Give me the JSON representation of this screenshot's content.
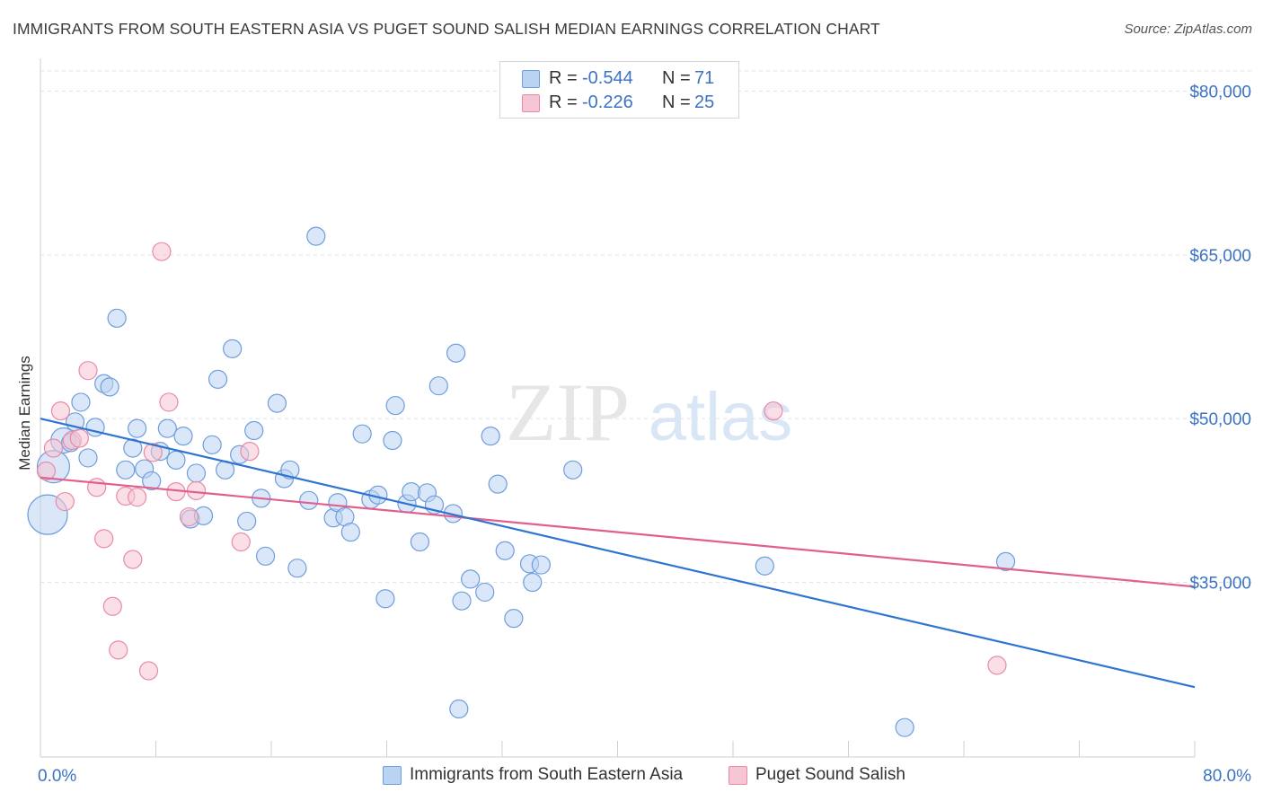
{
  "title": "IMMIGRANTS FROM SOUTH EASTERN ASIA VS PUGET SOUND SALISH MEDIAN EARNINGS CORRELATION CHART",
  "source": "Source: ZipAtlas.com",
  "watermark": {
    "zip": "ZIP",
    "atlas": "atlas"
  },
  "legend": {
    "rows": [
      {
        "r_label": "R =",
        "r_value": "-0.544",
        "n_label": "N =",
        "n_value": "71"
      },
      {
        "r_label": "R =",
        "r_value": "-0.226",
        "n_label": "N =",
        "n_value": "25"
      }
    ]
  },
  "colors": {
    "blue_fill": "#b9d3f3",
    "blue_stroke": "#6f9ddb",
    "blue_line": "#2f74d0",
    "pink_fill": "#f6c5d3",
    "pink_stroke": "#e88aa8",
    "pink_line": "#e0608d",
    "tick_label": "#3b73c4",
    "grid": "#dfe3ea"
  },
  "chart_data": {
    "type": "scatter",
    "title": "IMMIGRANTS FROM SOUTH EASTERN ASIA VS PUGET SOUND SALISH MEDIAN EARNINGS CORRELATION CHART",
    "xlabel": "",
    "ylabel": "Median Earnings",
    "xlim": [
      0,
      80
    ],
    "ylim": [
      19000,
      83000
    ],
    "x_tick_labels": [
      "0.0%",
      "80.0%"
    ],
    "y_ticks": [
      35000,
      50000,
      65000,
      80000
    ],
    "y_tick_labels": [
      "$35,000",
      "$50,000",
      "$65,000",
      "$80,000"
    ],
    "grid": true,
    "legend_position": "top-center",
    "series": [
      {
        "name": "Immigrants from South Eastern Asia",
        "color": "#6f9ddb",
        "trend": {
          "x": [
            0,
            80
          ],
          "y": [
            50000,
            25400
          ]
        },
        "points": [
          {
            "x": 0.5,
            "y": 41200,
            "s": 22
          },
          {
            "x": 0.9,
            "y": 45600,
            "s": 18
          },
          {
            "x": 1.6,
            "y": 48000,
            "s": 14
          },
          {
            "x": 2.1,
            "y": 47800,
            "s": 10
          },
          {
            "x": 2.4,
            "y": 49700,
            "s": 10
          },
          {
            "x": 2.8,
            "y": 51500,
            "s": 10
          },
          {
            "x": 3.3,
            "y": 46400,
            "s": 10
          },
          {
            "x": 3.8,
            "y": 49200,
            "s": 10
          },
          {
            "x": 4.4,
            "y": 53200,
            "s": 10
          },
          {
            "x": 4.8,
            "y": 52900,
            "s": 10
          },
          {
            "x": 5.3,
            "y": 59200,
            "s": 10
          },
          {
            "x": 5.9,
            "y": 45300,
            "s": 10
          },
          {
            "x": 6.4,
            "y": 47300,
            "s": 10
          },
          {
            "x": 6.7,
            "y": 49100,
            "s": 10
          },
          {
            "x": 7.2,
            "y": 45400,
            "s": 10
          },
          {
            "x": 7.7,
            "y": 44300,
            "s": 10
          },
          {
            "x": 8.3,
            "y": 47000,
            "s": 10
          },
          {
            "x": 8.8,
            "y": 49100,
            "s": 10
          },
          {
            "x": 9.4,
            "y": 46200,
            "s": 10
          },
          {
            "x": 9.9,
            "y": 48400,
            "s": 10
          },
          {
            "x": 10.4,
            "y": 40800,
            "s": 10
          },
          {
            "x": 10.8,
            "y": 45000,
            "s": 10
          },
          {
            "x": 11.3,
            "y": 41100,
            "s": 10
          },
          {
            "x": 11.9,
            "y": 47600,
            "s": 10
          },
          {
            "x": 12.3,
            "y": 53600,
            "s": 10
          },
          {
            "x": 12.8,
            "y": 45300,
            "s": 10
          },
          {
            "x": 13.3,
            "y": 56400,
            "s": 10
          },
          {
            "x": 13.8,
            "y": 46700,
            "s": 10
          },
          {
            "x": 14.3,
            "y": 40600,
            "s": 10
          },
          {
            "x": 14.8,
            "y": 48900,
            "s": 10
          },
          {
            "x": 15.3,
            "y": 42700,
            "s": 10
          },
          {
            "x": 15.6,
            "y": 37400,
            "s": 10
          },
          {
            "x": 16.4,
            "y": 51400,
            "s": 10
          },
          {
            "x": 16.9,
            "y": 44500,
            "s": 10
          },
          {
            "x": 17.3,
            "y": 45300,
            "s": 10
          },
          {
            "x": 17.8,
            "y": 36300,
            "s": 10
          },
          {
            "x": 18.6,
            "y": 42500,
            "s": 10
          },
          {
            "x": 19.1,
            "y": 66700,
            "s": 10
          },
          {
            "x": 20.3,
            "y": 40900,
            "s": 10
          },
          {
            "x": 20.6,
            "y": 42300,
            "s": 10
          },
          {
            "x": 21.1,
            "y": 41000,
            "s": 10
          },
          {
            "x": 21.5,
            "y": 39600,
            "s": 10
          },
          {
            "x": 22.3,
            "y": 48600,
            "s": 10
          },
          {
            "x": 22.9,
            "y": 42600,
            "s": 10
          },
          {
            "x": 23.4,
            "y": 43000,
            "s": 10
          },
          {
            "x": 23.9,
            "y": 33500,
            "s": 10
          },
          {
            "x": 24.4,
            "y": 48000,
            "s": 10
          },
          {
            "x": 24.6,
            "y": 51200,
            "s": 10
          },
          {
            "x": 25.4,
            "y": 42200,
            "s": 10
          },
          {
            "x": 25.7,
            "y": 43300,
            "s": 10
          },
          {
            "x": 26.3,
            "y": 38700,
            "s": 10
          },
          {
            "x": 26.8,
            "y": 43200,
            "s": 10
          },
          {
            "x": 27.3,
            "y": 42100,
            "s": 10
          },
          {
            "x": 27.6,
            "y": 53000,
            "s": 10
          },
          {
            "x": 28.6,
            "y": 41300,
            "s": 10
          },
          {
            "x": 28.8,
            "y": 56000,
            "s": 10
          },
          {
            "x": 29.0,
            "y": 23400,
            "s": 10
          },
          {
            "x": 29.2,
            "y": 33300,
            "s": 10
          },
          {
            "x": 29.8,
            "y": 35300,
            "s": 10
          },
          {
            "x": 30.8,
            "y": 34100,
            "s": 10
          },
          {
            "x": 31.2,
            "y": 48400,
            "s": 10
          },
          {
            "x": 31.7,
            "y": 44000,
            "s": 10
          },
          {
            "x": 32.2,
            "y": 37900,
            "s": 10
          },
          {
            "x": 32.8,
            "y": 31700,
            "s": 10
          },
          {
            "x": 33.9,
            "y": 36700,
            "s": 10
          },
          {
            "x": 34.1,
            "y": 35000,
            "s": 10
          },
          {
            "x": 34.7,
            "y": 36600,
            "s": 10
          },
          {
            "x": 36.9,
            "y": 45300,
            "s": 10
          },
          {
            "x": 50.2,
            "y": 36500,
            "s": 10
          },
          {
            "x": 59.9,
            "y": 21700,
            "s": 10
          },
          {
            "x": 66.9,
            "y": 36900,
            "s": 10
          }
        ]
      },
      {
        "name": "Puget Sound Salish",
        "color": "#e88aa8",
        "trend": {
          "x": [
            0,
            80
          ],
          "y": [
            44600,
            34600
          ]
        },
        "points": [
          {
            "x": 0.4,
            "y": 45200,
            "s": 10
          },
          {
            "x": 0.9,
            "y": 47300,
            "s": 10
          },
          {
            "x": 1.4,
            "y": 50700,
            "s": 10
          },
          {
            "x": 1.7,
            "y": 42400,
            "s": 10
          },
          {
            "x": 2.2,
            "y": 48000,
            "s": 10
          },
          {
            "x": 2.7,
            "y": 48200,
            "s": 10
          },
          {
            "x": 3.3,
            "y": 54400,
            "s": 10
          },
          {
            "x": 3.9,
            "y": 43700,
            "s": 10
          },
          {
            "x": 4.4,
            "y": 39000,
            "s": 10
          },
          {
            "x": 5.0,
            "y": 32800,
            "s": 10
          },
          {
            "x": 5.4,
            "y": 28800,
            "s": 10
          },
          {
            "x": 5.9,
            "y": 42900,
            "s": 10
          },
          {
            "x": 6.4,
            "y": 37100,
            "s": 10
          },
          {
            "x": 6.7,
            "y": 42800,
            "s": 10
          },
          {
            "x": 7.5,
            "y": 26900,
            "s": 10
          },
          {
            "x": 7.8,
            "y": 46900,
            "s": 10
          },
          {
            "x": 8.4,
            "y": 65300,
            "s": 10
          },
          {
            "x": 8.9,
            "y": 51500,
            "s": 10
          },
          {
            "x": 9.4,
            "y": 43300,
            "s": 10
          },
          {
            "x": 10.3,
            "y": 41000,
            "s": 10
          },
          {
            "x": 10.8,
            "y": 43400,
            "s": 10
          },
          {
            "x": 13.9,
            "y": 38700,
            "s": 10
          },
          {
            "x": 14.5,
            "y": 47000,
            "s": 10
          },
          {
            "x": 50.8,
            "y": 50700,
            "s": 10
          },
          {
            "x": 66.3,
            "y": 27400,
            "s": 10
          }
        ]
      }
    ]
  }
}
